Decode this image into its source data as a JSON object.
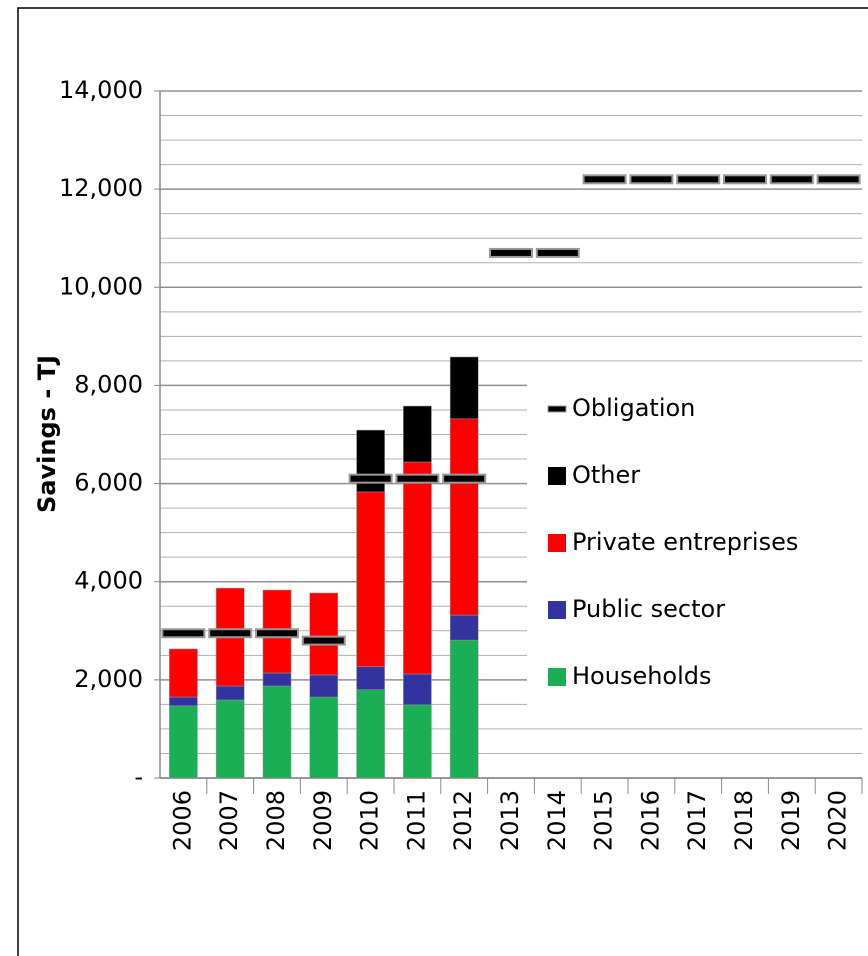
{
  "chart_data": {
    "type": "bar",
    "stacked": true,
    "y_axis_label": "Savings - TJ",
    "categories": [
      "2006",
      "2007",
      "2008",
      "2009",
      "2010",
      "2011",
      "2012",
      "2013",
      "2014",
      "2015",
      "2016",
      "2017",
      "2018",
      "2019",
      "2020"
    ],
    "series": [
      {
        "name": "Households",
        "color": "#1aaf54",
        "values": [
          1470,
          1590,
          1875,
          1650,
          1800,
          1490,
          2810,
          null,
          null,
          null,
          null,
          null,
          null,
          null,
          null
        ]
      },
      {
        "name": "Public sector",
        "color": "#33339f",
        "values": [
          180,
          285,
          265,
          450,
          470,
          630,
          510,
          null,
          null,
          null,
          null,
          null,
          null,
          null,
          null
        ]
      },
      {
        "name": "Private entreprises",
        "color": "#ff0000",
        "values": [
          980,
          1995,
          1690,
          1670,
          3560,
          4320,
          4000,
          null,
          null,
          null,
          null,
          null,
          null,
          null,
          null
        ]
      },
      {
        "name": "Other",
        "color": "#000000",
        "values": [
          0,
          0,
          0,
          0,
          1260,
          1140,
          1260,
          null,
          null,
          null,
          null,
          null,
          null,
          null,
          null
        ]
      },
      {
        "name": "Obligation",
        "color": "#000000",
        "style": "dash",
        "values": [
          2950,
          2950,
          2950,
          2800,
          6100,
          6100,
          6100,
          10700,
          10700,
          12200,
          12200,
          12200,
          12200,
          12200,
          12200
        ]
      }
    ],
    "ylim": [
      0,
      14000
    ],
    "yticks": [
      {
        "value": 0,
        "label": "-"
      },
      {
        "value": 2000,
        "label": "2,000"
      },
      {
        "value": 4000,
        "label": "4,000"
      },
      {
        "value": 6000,
        "label": "6,000"
      },
      {
        "value": 8000,
        "label": "8,000"
      },
      {
        "value": 10000,
        "label": "10,000"
      },
      {
        "value": 12000,
        "label": "12,000"
      },
      {
        "value": 14000,
        "label": "14,000"
      }
    ],
    "yticks_minor": [
      500,
      1000,
      1500,
      2500,
      3000,
      3500,
      4500,
      5000,
      5500,
      6500,
      7000,
      7500,
      8500,
      9000,
      9500,
      10500,
      11000,
      11500,
      12500,
      13000,
      13500
    ],
    "grid": true,
    "legend_position": "right"
  }
}
